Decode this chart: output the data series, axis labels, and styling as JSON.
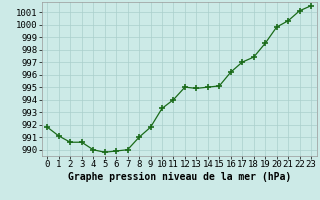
{
  "x": [
    0,
    1,
    2,
    3,
    4,
    5,
    6,
    7,
    8,
    9,
    10,
    11,
    12,
    13,
    14,
    15,
    16,
    17,
    18,
    19,
    20,
    21,
    22,
    23
  ],
  "y": [
    991.8,
    991.1,
    990.6,
    990.6,
    990.0,
    989.8,
    989.9,
    990.0,
    991.0,
    991.8,
    993.3,
    994.0,
    995.0,
    994.9,
    995.0,
    995.1,
    996.2,
    997.0,
    997.4,
    998.5,
    999.8,
    1000.3,
    1001.1,
    1001.5
  ],
  "xlabel": "Graphe pression niveau de la mer (hPa)",
  "ylim": [
    989.5,
    1001.8
  ],
  "yticks": [
    990,
    991,
    992,
    993,
    994,
    995,
    996,
    997,
    998,
    999,
    1000,
    1001
  ],
  "xticks": [
    0,
    1,
    2,
    3,
    4,
    5,
    6,
    7,
    8,
    9,
    10,
    11,
    12,
    13,
    14,
    15,
    16,
    17,
    18,
    19,
    20,
    21,
    22,
    23
  ],
  "line_color": "#1a6b1a",
  "marker_color": "#1a6b1a",
  "bg_color": "#cceae7",
  "grid_color": "#aacfcc",
  "xlabel_fontsize": 7,
  "tick_fontsize": 6.5
}
